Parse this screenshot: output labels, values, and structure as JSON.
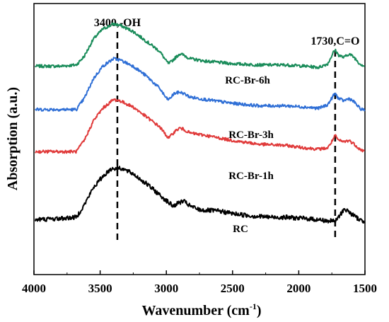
{
  "chart_data": {
    "type": "line",
    "xlabel_main": "Wavenumber (cm",
    "xlabel_sup": "-1",
    "xlabel_close": ")",
    "ylabel": "Absorption (a.u.)",
    "xlim": [
      4000,
      1500
    ],
    "ylim": [
      0,
      1
    ],
    "x_ticks": [
      {
        "value": 4000,
        "label": "4000"
      },
      {
        "value": 3500,
        "label": "3500"
      },
      {
        "value": 3000,
        "label": "3000"
      },
      {
        "value": 2500,
        "label": "2500"
      },
      {
        "value": 2000,
        "label": "2000"
      },
      {
        "value": 1500,
        "label": "1500"
      }
    ],
    "grid": false,
    "annotations": [
      {
        "label": "3400,-OH",
        "x": 3370
      },
      {
        "label": "1730,C=O",
        "x": 1725
      }
    ],
    "series": [
      {
        "label": "RC-Br-6h",
        "color": "#1a8c5a",
        "noise": 0.006,
        "points": [
          [
            4000,
            0.79
          ],
          [
            3800,
            0.79
          ],
          [
            3680,
            0.795
          ],
          [
            3620,
            0.83
          ],
          [
            3550,
            0.9
          ],
          [
            3480,
            0.94
          ],
          [
            3400,
            0.96
          ],
          [
            3350,
            0.955
          ],
          [
            3250,
            0.93
          ],
          [
            3150,
            0.89
          ],
          [
            3050,
            0.85
          ],
          [
            3000,
            0.81
          ],
          [
            2980,
            0.8
          ],
          [
            2940,
            0.82
          ],
          [
            2900,
            0.84
          ],
          [
            2870,
            0.835
          ],
          [
            2820,
            0.82
          ],
          [
            2700,
            0.81
          ],
          [
            2500,
            0.8
          ],
          [
            2300,
            0.795
          ],
          [
            2100,
            0.795
          ],
          [
            1950,
            0.79
          ],
          [
            1850,
            0.785
          ],
          [
            1780,
            0.8
          ],
          [
            1740,
            0.845
          ],
          [
            1725,
            0.855
          ],
          [
            1700,
            0.835
          ],
          [
            1660,
            0.825
          ],
          [
            1620,
            0.84
          ],
          [
            1580,
            0.825
          ],
          [
            1540,
            0.8
          ],
          [
            1500,
            0.79
          ]
        ]
      },
      {
        "label": "RC-Br-3h",
        "color": "#2f6fd6",
        "noise": 0.006,
        "points": [
          [
            4000,
            0.615
          ],
          [
            3800,
            0.615
          ],
          [
            3680,
            0.615
          ],
          [
            3620,
            0.66
          ],
          [
            3550,
            0.74
          ],
          [
            3480,
            0.79
          ],
          [
            3400,
            0.82
          ],
          [
            3350,
            0.815
          ],
          [
            3250,
            0.79
          ],
          [
            3150,
            0.75
          ],
          [
            3050,
            0.7
          ],
          [
            3000,
            0.66
          ],
          [
            2980,
            0.655
          ],
          [
            2940,
            0.68
          ],
          [
            2900,
            0.685
          ],
          [
            2870,
            0.68
          ],
          [
            2820,
            0.665
          ],
          [
            2700,
            0.655
          ],
          [
            2500,
            0.64
          ],
          [
            2300,
            0.63
          ],
          [
            2100,
            0.63
          ],
          [
            1950,
            0.625
          ],
          [
            1850,
            0.62
          ],
          [
            1780,
            0.635
          ],
          [
            1740,
            0.67
          ],
          [
            1725,
            0.68
          ],
          [
            1700,
            0.66
          ],
          [
            1660,
            0.65
          ],
          [
            1620,
            0.66
          ],
          [
            1580,
            0.645
          ],
          [
            1540,
            0.62
          ],
          [
            1500,
            0.61
          ]
        ]
      },
      {
        "label": "RC-Br-1h",
        "color": "#e03a3a",
        "noise": 0.006,
        "points": [
          [
            4000,
            0.445
          ],
          [
            3800,
            0.445
          ],
          [
            3680,
            0.445
          ],
          [
            3620,
            0.49
          ],
          [
            3550,
            0.57
          ],
          [
            3480,
            0.62
          ],
          [
            3400,
            0.655
          ],
          [
            3350,
            0.65
          ],
          [
            3250,
            0.625
          ],
          [
            3150,
            0.585
          ],
          [
            3050,
            0.545
          ],
          [
            3000,
            0.51
          ],
          [
            2980,
            0.5
          ],
          [
            2940,
            0.525
          ],
          [
            2900,
            0.54
          ],
          [
            2870,
            0.535
          ],
          [
            2820,
            0.52
          ],
          [
            2700,
            0.51
          ],
          [
            2500,
            0.49
          ],
          [
            2300,
            0.475
          ],
          [
            2100,
            0.47
          ],
          [
            1950,
            0.46
          ],
          [
            1850,
            0.455
          ],
          [
            1780,
            0.46
          ],
          [
            1740,
            0.495
          ],
          [
            1725,
            0.51
          ],
          [
            1700,
            0.49
          ],
          [
            1660,
            0.485
          ],
          [
            1620,
            0.49
          ],
          [
            1580,
            0.475
          ],
          [
            1540,
            0.455
          ],
          [
            1500,
            0.445
          ]
        ]
      },
      {
        "label": "RC",
        "color": "#000000",
        "noise": 0.009,
        "points": [
          [
            4000,
            0.17
          ],
          [
            3800,
            0.175
          ],
          [
            3680,
            0.18
          ],
          [
            3620,
            0.23
          ],
          [
            3550,
            0.3
          ],
          [
            3480,
            0.345
          ],
          [
            3420,
            0.375
          ],
          [
            3350,
            0.38
          ],
          [
            3250,
            0.355
          ],
          [
            3150,
            0.315
          ],
          [
            3050,
            0.27
          ],
          [
            2950,
            0.225
          ],
          [
            2900,
            0.24
          ],
          [
            2870,
            0.245
          ],
          [
            2820,
            0.225
          ],
          [
            2750,
            0.21
          ],
          [
            2600,
            0.205
          ],
          [
            2500,
            0.195
          ],
          [
            2350,
            0.185
          ],
          [
            2200,
            0.18
          ],
          [
            2100,
            0.18
          ],
          [
            1950,
            0.175
          ],
          [
            1850,
            0.17
          ],
          [
            1780,
            0.165
          ],
          [
            1720,
            0.165
          ],
          [
            1680,
            0.195
          ],
          [
            1655,
            0.215
          ],
          [
            1630,
            0.205
          ],
          [
            1580,
            0.185
          ],
          [
            1540,
            0.17
          ],
          [
            1500,
            0.16
          ]
        ]
      }
    ]
  }
}
